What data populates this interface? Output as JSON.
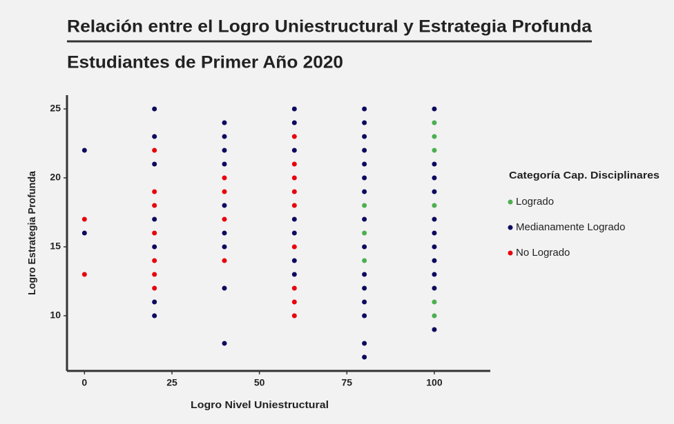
{
  "chart_data": {
    "type": "scatter",
    "title": "Relación entre el Logro Uniestructural y Estrategia Profunda",
    "subtitle": "Estudiantes de Primer Año 2020",
    "x_label": "Logro Nivel Uniestructural",
    "y_label": "Logro Estrategia Profunda",
    "legend_title": "Categoría Cap. Disciplinares",
    "legend_position": "right",
    "xlim": [
      -5,
      116
    ],
    "ylim": [
      6,
      26
    ],
    "xticks": [
      0,
      25,
      50,
      75,
      100
    ],
    "yticks": [
      10,
      15,
      20,
      25
    ],
    "series": [
      {
        "name": "Logrado",
        "color": "#4caf50",
        "x": [
          80,
          80,
          80,
          100,
          100,
          100,
          100,
          100,
          100
        ],
        "values": [
          18,
          16,
          14,
          24,
          23,
          22,
          18,
          11,
          10
        ]
      },
      {
        "name": "Medianamente Logrado",
        "color": "#0d0a5e",
        "x": [
          0,
          0,
          20,
          20,
          20,
          20,
          20,
          20,
          20,
          40,
          40,
          40,
          40,
          40,
          40,
          40,
          40,
          40,
          60,
          60,
          60,
          60,
          60,
          60,
          60,
          80,
          80,
          80,
          80,
          80,
          80,
          80,
          80,
          80,
          80,
          80,
          80,
          80,
          80,
          80,
          100,
          100,
          100,
          100,
          100,
          100,
          100,
          100,
          100,
          100,
          100
        ],
        "values": [
          22,
          16,
          25,
          23,
          21,
          17,
          15,
          11,
          10,
          24,
          23,
          22,
          21,
          18,
          16,
          15,
          12,
          8,
          25,
          24,
          22,
          17,
          16,
          14,
          13,
          25,
          24,
          23,
          22,
          21,
          20,
          19,
          17,
          15,
          13,
          12,
          11,
          10,
          8,
          7,
          25,
          21,
          20,
          19,
          17,
          16,
          15,
          14,
          13,
          12,
          9
        ]
      },
      {
        "name": "No Logrado",
        "color": "#e8000b",
        "x": [
          0,
          0,
          20,
          20,
          20,
          20,
          20,
          20,
          20,
          40,
          40,
          40,
          40,
          60,
          60,
          60,
          60,
          60,
          60,
          60,
          60,
          60
        ],
        "values": [
          17,
          13,
          22,
          19,
          18,
          16,
          14,
          13,
          12,
          20,
          19,
          17,
          14,
          23,
          21,
          20,
          19,
          18,
          15,
          12,
          11,
          10
        ]
      }
    ]
  }
}
